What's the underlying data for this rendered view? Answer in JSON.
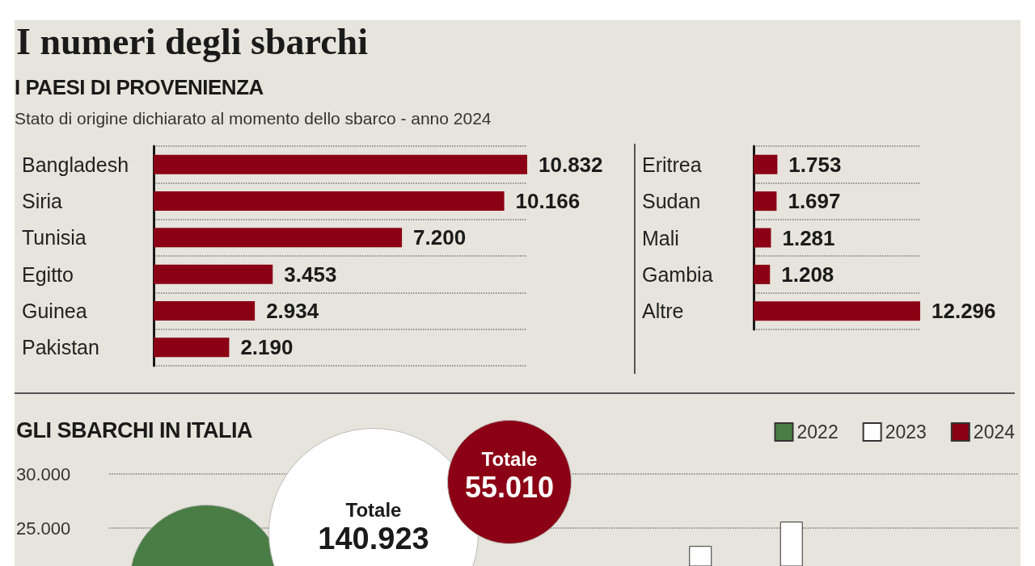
{
  "chart_data": [
    {
      "type": "bar",
      "orientation": "horizontal",
      "title": "I numeri degli sbarchi",
      "subtitle": "I PAESI DI PROVENIENZA",
      "annotations": [
        "Stato di origine dichiarato al momento dello sbarco - anno 2024"
      ],
      "categories": [
        "Bangladesh",
        "Siria",
        "Tunisia",
        "Egitto",
        "Guinea",
        "Pakistan"
      ],
      "values": [
        10832,
        10166,
        7200,
        3453,
        2934,
        2190
      ],
      "value_labels": [
        "10.832",
        "10.166",
        "7.200",
        "3.453",
        "2.934",
        "2.190"
      ],
      "color": "#8b0014",
      "tick_labels": "y",
      "grid": "y"
    },
    {
      "type": "bar",
      "orientation": "horizontal",
      "categories": [
        "Eritrea",
        "Sudan",
        "Mali",
        "Gambia",
        "Altre"
      ],
      "values": [
        1753,
        1697,
        1281,
        1208,
        12296
      ],
      "value_labels": [
        "1.753",
        "1.697",
        "1.281",
        "1.208",
        "12.296"
      ],
      "color": "#8b0014",
      "tick_labels": "y",
      "grid": "y"
    },
    {
      "type": "bar",
      "title": "GLI SBARCHI IN ITALIA",
      "annotations": [
        "Totale\n140.923",
        "Totale\n55.010"
      ],
      "categories": [
        null,
        null,
        null,
        null,
        null,
        null,
        null,
        null,
        null,
        null
      ],
      "series": [
        {
          "name": "2022",
          "color": "#4a7d45",
          "values": [
            null,
            null,
            null,
            null,
            null,
            null,
            null,
            null,
            null,
            null
          ]
        },
        {
          "name": "2023",
          "color": "#ffffff",
          "values": [
            null,
            null,
            null,
            null,
            null,
            null,
            23350,
            25600,
            null,
            null
          ]
        },
        {
          "name": "2024",
          "color": "#8b0014",
          "values": [
            null,
            null,
            null,
            null,
            null,
            null,
            null,
            null,
            null,
            null
          ]
        }
      ],
      "ylim": [
        21500,
        30000
      ],
      "yticks": [
        {
          "value": 25000,
          "label": "25.000"
        },
        {
          "value": 30000,
          "label": "30.000"
        }
      ],
      "legend": "top right",
      "tick_labels": "y",
      "grid": "y"
    }
  ]
}
